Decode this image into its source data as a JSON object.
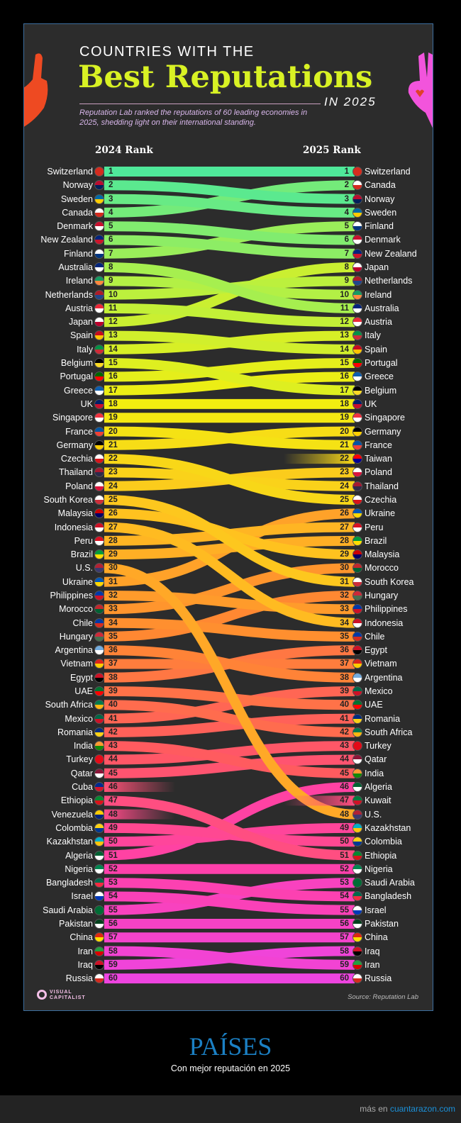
{
  "header": {
    "kicker": "COUNTRIES WITH THE",
    "title": "Best Reputations",
    "year": "IN 2025",
    "subtitle": "Reputation Lab ranked the reputations of 60 leading economies in 2025, shedding light on their international standing."
  },
  "chart_data": {
    "type": "bump",
    "left_label": "2024 Rank",
    "right_label": "2025 Rank",
    "rank_2024": [
      "Switzerland",
      "Norway",
      "Sweden",
      "Canada",
      "Denmark",
      "New Zealand",
      "Finland",
      "Australia",
      "Ireland",
      "Netherlands",
      "Austria",
      "Japan",
      "Spain",
      "Italy",
      "Belgium",
      "Portugal",
      "Greece",
      "UK",
      "Singapore",
      "France",
      "Germany",
      "Czechia",
      "Thailand",
      "Poland",
      "South Korea",
      "Malaysia",
      "Indonesia",
      "Peru",
      "Brazil",
      "U.S.",
      "Ukraine",
      "Philippines",
      "Morocco",
      "Chile",
      "Hungary",
      "Argentina",
      "Vietnam",
      "Egypt",
      "UAE",
      "South Africa",
      "Mexico",
      "Romania",
      "India",
      "Turkey",
      "Qatar",
      "Cuba",
      "Ethiopia",
      "Venezuela",
      "Colombia",
      "Kazakhstan",
      "Algeria",
      "Nigeria",
      "Bangladesh",
      "Israel",
      "Saudi Arabia",
      "Pakistan",
      "China",
      "Iran",
      "Iraq",
      "Russia"
    ],
    "rank_2025": [
      "Switzerland",
      "Canada",
      "Norway",
      "Sweden",
      "Finland",
      "Denmark",
      "New Zealand",
      "Japan",
      "Netherlands",
      "Ireland",
      "Australia",
      "Austria",
      "Italy",
      "Spain",
      "Portugal",
      "Greece",
      "Belgium",
      "UK",
      "Singapore",
      "Germany",
      "France",
      "Taiwan",
      "Poland",
      "Thailand",
      "Czechia",
      "Ukraine",
      "Peru",
      "Brazil",
      "Malaysia",
      "Morocco",
      "South Korea",
      "Hungary",
      "Philippines",
      "Indonesia",
      "Chile",
      "Egypt",
      "Vietnam",
      "Argentina",
      "Mexico",
      "UAE",
      "Romania",
      "South Africa",
      "Turkey",
      "Qatar",
      "India",
      "Algeria",
      "Kuwait",
      "U.S.",
      "Kazakhstan",
      "Colombia",
      "Ethiopia",
      "Nigeria",
      "Saudi Arabia",
      "Bangladesh",
      "Israel",
      "Pakistan",
      "China",
      "Iraq",
      "Iran",
      "Russia"
    ],
    "color_scale": [
      "#4fe89a",
      "#b8f040",
      "#f2ee10",
      "#ffc020",
      "#ff8a30",
      "#ff5a60",
      "#ff40a8",
      "#ee44e0"
    ]
  },
  "footer": {
    "logo": "VISUAL CAPITALIST",
    "source": "Source: Reputation Lab",
    "caption_title": "PAÍSES",
    "caption_sub": "Con mejor reputación en 2025",
    "more_prefix": "más en",
    "more_link": "cuantarazon.com"
  }
}
